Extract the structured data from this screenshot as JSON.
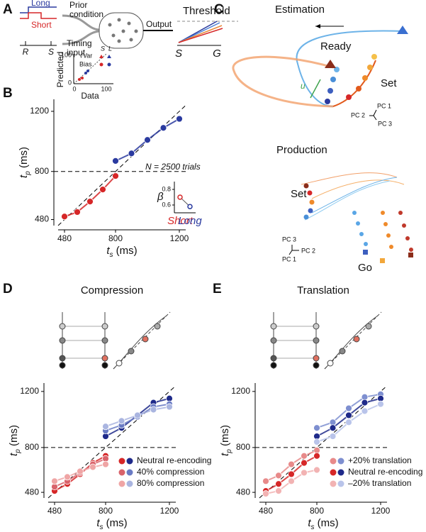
{
  "panel_labels": [
    "A",
    "B",
    "C",
    "D",
    "E"
  ],
  "panel_a": {
    "legend": [
      "Long",
      "Short"
    ],
    "axis": [
      "R",
      "S"
    ],
    "prior": [
      "Prior",
      "condition"
    ],
    "timing": [
      "Timing",
      "input"
    ],
    "output": "Output",
    "threshold": "Threshold",
    "threshold_axis": [
      "S",
      "G"
    ]
  },
  "inset_scatter": {
    "xlabel": "Data",
    "ylabel": "Predicted",
    "xticks": [
      0,
      100
    ],
    "yticks": [
      0,
      100
    ],
    "legend": [
      "√Var",
      "Bias"
    ],
    "headers": [
      "S",
      "L"
    ]
  },
  "annotation_b": "N = 2500 trials",
  "panel_c": {
    "estimation": "Estimation",
    "ready": "Ready",
    "set": "Set",
    "u": "u",
    "pc_est": [
      "PC 1",
      "PC 2",
      "PC 3"
    ],
    "production": "Production",
    "go": "Go",
    "pc_prod": [
      "PC 3",
      "PC 2",
      "PC 1"
    ]
  },
  "chart_data": [
    {
      "type": "scatter",
      "xlabel": {
        "t": "t",
        "sub": "s",
        "unit": " (ms)"
      },
      "ylabel": {
        "t": "t",
        "sub": "p",
        "unit": " (ms)"
      },
      "xlim": [
        440,
        1240
      ],
      "ylim": [
        440,
        1280
      ],
      "xticks": [
        480,
        800,
        1200
      ],
      "yticks": [
        480,
        800,
        1200
      ],
      "reference_line": 800,
      "unity": true,
      "x": [
        [
          480,
          560,
          640,
          720,
          800
        ],
        [
          800,
          900,
          1000,
          1100,
          1200
        ]
      ],
      "series": [
        {
          "colors": [
            "#d62728",
            "#2a3a9f"
          ],
          "values": [
            [
              500,
              530,
              600,
              680,
              770
            ],
            [
              870,
              920,
              1010,
              1090,
              1150
            ]
          ]
        }
      ]
    },
    {
      "type": "line",
      "ylabel": "β",
      "categories": [
        "Short",
        "Long"
      ],
      "colors": [
        "#d62728",
        "#2a3a9f"
      ],
      "values": [
        0.7,
        0.58
      ],
      "ylim": [
        0.5,
        0.9
      ],
      "yticks": [
        0.6,
        0.8
      ]
    },
    {
      "type": "scatter",
      "title": "Compression",
      "xlabel": {
        "t": "t",
        "sub": "s",
        "unit": " (ms)"
      },
      "ylabel": {
        "t": "t",
        "sub": "p",
        "unit": " (ms)"
      },
      "xlim": [
        440,
        1240
      ],
      "ylim": [
        440,
        1260
      ],
      "xticks": [
        480,
        800,
        1200
      ],
      "yticks": [
        480,
        800,
        1200
      ],
      "reference_line": 800,
      "unity": true,
      "x": [
        [
          480,
          560,
          640,
          720,
          800
        ],
        [
          800,
          900,
          1000,
          1100,
          1200
        ]
      ],
      "series": [
        {
          "name": "Neutral re-encoding",
          "colors": [
            "#d62728",
            "#1f2a8a"
          ],
          "values": [
            [
              490,
              540,
              610,
              690,
              740
            ],
            [
              880,
              940,
              1030,
              1120,
              1150
            ]
          ]
        },
        {
          "name": "40% compression",
          "colors": [
            "#d9636b",
            "#6a7bc4"
          ],
          "values": [
            [
              520,
              560,
              620,
              680,
              720
            ],
            [
              920,
              960,
              1020,
              1090,
              1110
            ]
          ]
        },
        {
          "name": "80% compression",
          "colors": [
            "#efa5a5",
            "#aab5e0"
          ],
          "values": [
            [
              560,
              590,
              630,
              660,
              680
            ],
            [
              950,
              990,
              1030,
              1070,
              1090
            ]
          ]
        }
      ]
    },
    {
      "type": "scatter",
      "title": "Translation",
      "xlabel": {
        "t": "t",
        "sub": "s",
        "unit": " (ms)"
      },
      "ylabel": {
        "t": "t",
        "sub": "p",
        "unit": " (ms)"
      },
      "xlim": [
        440,
        1240
      ],
      "ylim": [
        440,
        1260
      ],
      "xticks": [
        480,
        800,
        1200
      ],
      "yticks": [
        480,
        800,
        1200
      ],
      "reference_line": 800,
      "unity": true,
      "x": [
        [
          480,
          560,
          640,
          720,
          800
        ],
        [
          800,
          900,
          1000,
          1100,
          1200
        ]
      ],
      "series": [
        {
          "name": "+20% translation",
          "colors": [
            "#e88a8a",
            "#7e8fd0"
          ],
          "values": [
            [
              560,
              600,
              680,
              740,
              780
            ],
            [
              940,
              980,
              1080,
              1160,
              1180
            ]
          ]
        },
        {
          "name": "Neutral re-encoding",
          "colors": [
            "#d62728",
            "#1f2a8a"
          ],
          "values": [
            [
              490,
              540,
              610,
              690,
              740
            ],
            [
              880,
              940,
              1030,
              1120,
              1150
            ]
          ]
        },
        {
          "name": "–20% translation",
          "colors": [
            "#f2b3b3",
            "#b9c4ea"
          ],
          "values": [
            [
              470,
              490,
              560,
              620,
              640
            ],
            [
              840,
              880,
              980,
              1060,
              1110
            ]
          ]
        }
      ]
    }
  ]
}
